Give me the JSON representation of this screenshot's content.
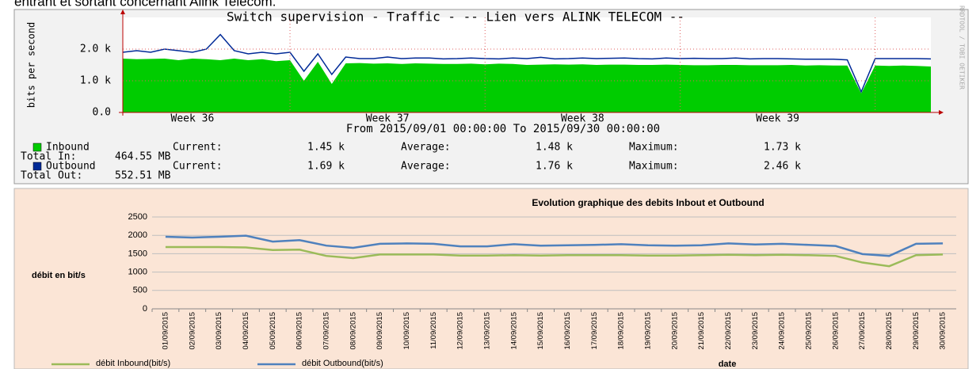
{
  "caption": "entrant et sortant concernant Alink Telecom.",
  "chart_data": [
    {
      "type": "area",
      "title": "Switch supervision - Traffic - -- Lien vers ALINK TELECOM --",
      "subtitle": "From 2015/09/01 00:00:00 To 2015/09/30 00:00:00",
      "y_label": "bits per second",
      "watermark": "RRDTOOL / TOBI OETIKER",
      "x_labels": [
        "Week 36",
        "Week 37",
        "Week 38",
        "Week 39"
      ],
      "ylim": [
        0,
        3000
      ],
      "yticks": [
        {
          "value": 0,
          "label": "0.0"
        },
        {
          "value": 1000,
          "label": "1.0 k"
        },
        {
          "value": 2000,
          "label": "2.0 k"
        }
      ],
      "grid": true,
      "series": [
        {
          "name": "Inbound",
          "color": "#00cc00",
          "style": "area",
          "values": [
            1700,
            1680,
            1690,
            1700,
            1650,
            1700,
            1680,
            1650,
            1700,
            1650,
            1680,
            1620,
            1650,
            1000,
            1600,
            900,
            1550,
            1560,
            1540,
            1550,
            1530,
            1550,
            1540,
            1530,
            1530,
            1540,
            1520,
            1540,
            1530,
            1500,
            1510,
            1520,
            1510,
            1520,
            1500,
            1510,
            1510,
            1500,
            1500,
            1510,
            1500,
            1490,
            1490,
            1500,
            1500,
            1490,
            1490,
            1490,
            1500,
            1480,
            1490,
            1480,
            1480,
            600,
            1480,
            1470,
            1480,
            1470,
            1450
          ],
          "stats": [
            {
              "label": "Current:",
              "value": "1.45 k"
            },
            {
              "label": "Average:",
              "value": "1.48 k"
            },
            {
              "label": "Maximum:",
              "value": "1.73 k"
            }
          ],
          "total": {
            "label": "Total In:",
            "value": "464.55 MB"
          }
        },
        {
          "name": "Outbound",
          "color": "#002a97",
          "style": "line",
          "values": [
            1900,
            1950,
            1900,
            2000,
            1950,
            1900,
            2000,
            2460,
            1950,
            1850,
            1900,
            1850,
            1900,
            1300,
            1850,
            1200,
            1750,
            1700,
            1700,
            1750,
            1700,
            1720,
            1720,
            1690,
            1700,
            1720,
            1700,
            1690,
            1720,
            1700,
            1740,
            1690,
            1700,
            1720,
            1700,
            1710,
            1720,
            1700,
            1690,
            1720,
            1700,
            1710,
            1700,
            1700,
            1720,
            1690,
            1700,
            1700,
            1690,
            1680,
            1680,
            1680,
            1660,
            650,
            1700,
            1700,
            1700,
            1700,
            1690
          ],
          "stats": [
            {
              "label": "Current:",
              "value": "1.69 k"
            },
            {
              "label": "Average:",
              "value": "1.76 k"
            },
            {
              "label": "Maximum:",
              "value": "2.46 k"
            }
          ],
          "total": {
            "label": "Total Out:",
            "value": "552.51 MB"
          }
        }
      ]
    },
    {
      "type": "line",
      "title": "Evolution graphique des debits Inbout et Outbound",
      "y_label": "débit en bit/s",
      "x_label": "date",
      "categories": [
        "01/09/2015",
        "02/09/2015",
        "03/09/2015",
        "04/09/2015",
        "05/09/2015",
        "06/09/2015",
        "07/09/2015",
        "08/09/2015",
        "09/09/2015",
        "10/09/2015",
        "11/09/2015",
        "12/09/2015",
        "13/09/2015",
        "14/09/2015",
        "15/09/2015",
        "16/09/2015",
        "17/09/2015",
        "18/09/2015",
        "19/09/2015",
        "20/09/2015",
        "21/09/2015",
        "22/09/2015",
        "23/09/2015",
        "24/09/2015",
        "25/09/2015",
        "26/09/2015",
        "27/09/2015",
        "28/09/2015",
        "29/09/2015",
        "30/09/2015"
      ],
      "ylim": [
        0,
        2500
      ],
      "yticks": [
        0,
        500,
        1000,
        1500,
        2000,
        2500
      ],
      "grid": true,
      "series": [
        {
          "name": "débit Inbound(bit/s)",
          "color": "#9bbb59",
          "values": [
            1680,
            1680,
            1680,
            1670,
            1600,
            1610,
            1440,
            1380,
            1480,
            1480,
            1480,
            1450,
            1450,
            1460,
            1450,
            1460,
            1460,
            1460,
            1450,
            1450,
            1460,
            1470,
            1460,
            1470,
            1460,
            1440,
            1260,
            1160,
            1460,
            1480
          ]
        },
        {
          "name": "débit Outbound(bit/s)",
          "color": "#4f81bd",
          "values": [
            1960,
            1940,
            1960,
            1990,
            1830,
            1870,
            1720,
            1660,
            1770,
            1780,
            1770,
            1700,
            1700,
            1760,
            1720,
            1730,
            1740,
            1760,
            1730,
            1720,
            1730,
            1780,
            1750,
            1770,
            1740,
            1710,
            1490,
            1440,
            1770,
            1780
          ]
        }
      ]
    }
  ]
}
